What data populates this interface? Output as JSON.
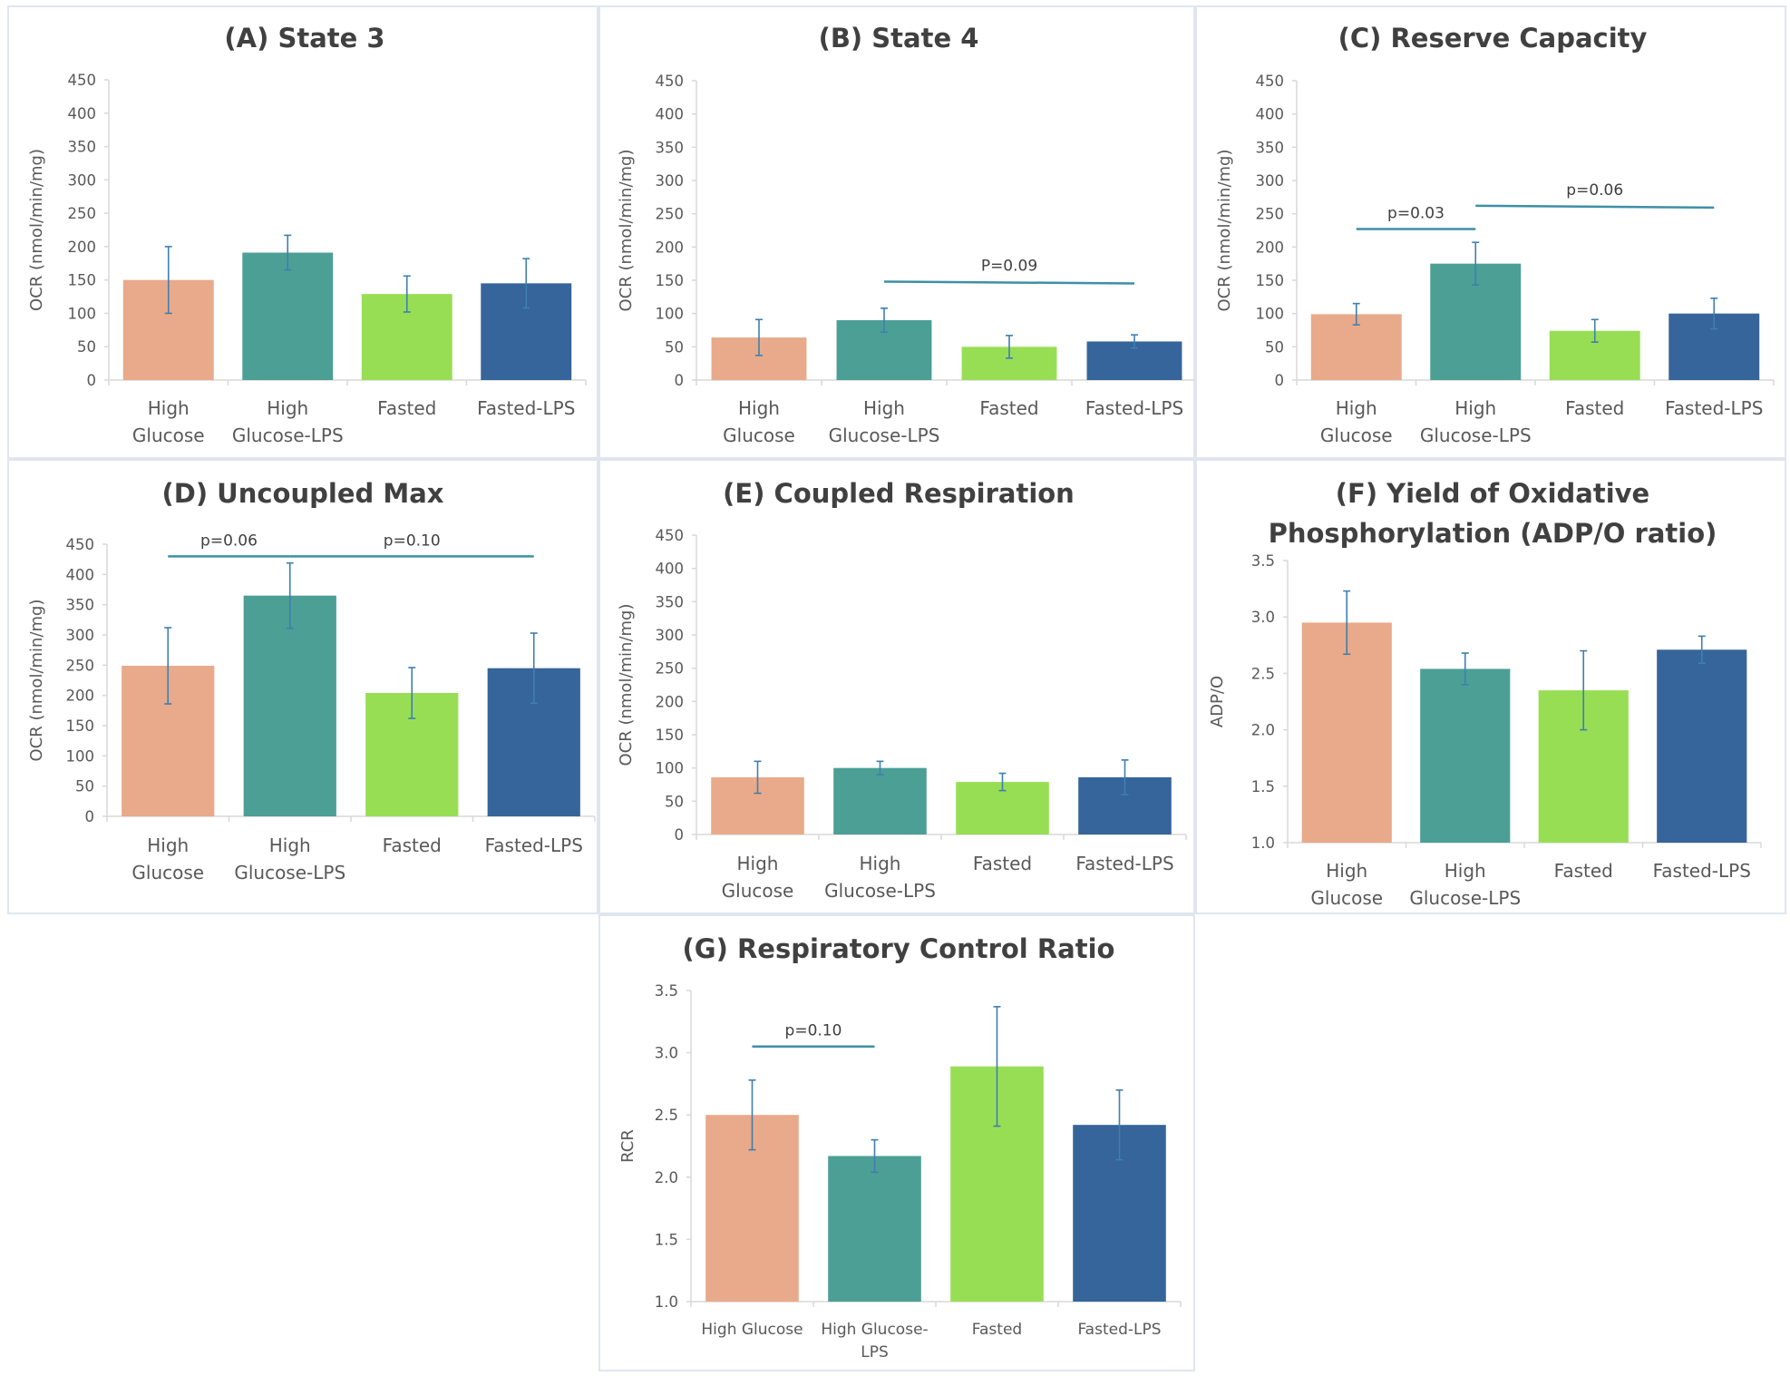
{
  "colors": {
    "high_glucose": "#e8aa8a",
    "high_glucose_lps": "#4c9f95",
    "fasted": "#98de55",
    "fasted_lps": "#35659a",
    "error_bar": "#3f7fb0",
    "annotation_line": "#3e8fa6",
    "axis": "#d9d9d9",
    "text": "#595959"
  },
  "chart_data": [
    {
      "id": "A",
      "type": "bar",
      "title": "(A) State 3",
      "ylabel": "OCR (nmol/min/mg)",
      "ylim": [
        0,
        450
      ],
      "yticks": [
        "0",
        "50",
        "100",
        "150",
        "200",
        "250",
        "300",
        "350",
        "400",
        "450"
      ],
      "categories": [
        [
          "High",
          "Glucose"
        ],
        [
          "High",
          "Glucose-LPS"
        ],
        [
          "Fasted"
        ],
        [
          "Fasted-LPS"
        ]
      ],
      "values": [
        150,
        191,
        129,
        145
      ],
      "errors": [
        50,
        26,
        27,
        37
      ],
      "annotations": []
    },
    {
      "id": "B",
      "type": "bar",
      "title": "(B) State 4",
      "ylabel": "OCR (nmol/min/mg)",
      "ylim": [
        0,
        450
      ],
      "yticks": [
        "0",
        "50",
        "100",
        "150",
        "200",
        "250",
        "300",
        "350",
        "400",
        "450"
      ],
      "categories": [
        [
          "High",
          "Glucose"
        ],
        [
          "High",
          "Glucose-LPS"
        ],
        [
          "Fasted"
        ],
        [
          "Fasted-LPS"
        ]
      ],
      "values": [
        64,
        90,
        50,
        58
      ],
      "errors": [
        27,
        18,
        17,
        10
      ],
      "annotations": [
        {
          "text": "P=0.09",
          "from": 2,
          "to": 4,
          "level": 148
        }
      ]
    },
    {
      "id": "C",
      "type": "bar",
      "title": "(C) Reserve Capacity",
      "ylabel": "OCR (nmol/min/mg)",
      "ylim": [
        0,
        450
      ],
      "yticks": [
        "0",
        "50",
        "100",
        "150",
        "200",
        "250",
        "300",
        "350",
        "400",
        "450"
      ],
      "categories": [
        [
          "High",
          "Glucose"
        ],
        [
          "High",
          "Glucose-LPS"
        ],
        [
          "Fasted"
        ],
        [
          "Fasted-LPS"
        ]
      ],
      "values": [
        99,
        175,
        74,
        100
      ],
      "errors": [
        16,
        32,
        17,
        23
      ],
      "annotations": [
        {
          "text": "p=0.03",
          "from": 1,
          "to": 2,
          "level": 227
        },
        {
          "text": "p=0.06",
          "from": 2,
          "to": 4,
          "level": 262
        }
      ]
    },
    {
      "id": "D",
      "type": "bar",
      "title": "(D) Uncoupled Max",
      "ylabel": "OCR (nmol/min/mg)",
      "ylim": [
        0,
        450
      ],
      "yticks": [
        "0",
        "50",
        "100",
        "150",
        "200",
        "250",
        "300",
        "350",
        "400",
        "450"
      ],
      "categories": [
        [
          "High",
          "Glucose"
        ],
        [
          "High",
          "Glucose-LPS"
        ],
        [
          "Fasted"
        ],
        [
          "Fasted-LPS"
        ]
      ],
      "values": [
        249,
        365,
        204,
        245
      ],
      "errors": [
        63,
        54,
        42,
        58
      ],
      "annotations": [
        {
          "text": "p=0.06",
          "from": 1,
          "to": 2,
          "level": 430
        },
        {
          "text": "p=0.10",
          "from": 2,
          "to": 4,
          "level": 430
        }
      ]
    },
    {
      "id": "E",
      "type": "bar",
      "title": "(E) Coupled Respiration",
      "ylabel": "OCR (nmol/min/mg)",
      "ylim": [
        0,
        450
      ],
      "yticks": [
        "0",
        "50",
        "100",
        "150",
        "200",
        "250",
        "300",
        "350",
        "400",
        "450"
      ],
      "categories": [
        [
          "High",
          "Glucose"
        ],
        [
          "High",
          "Glucose-LPS"
        ],
        [
          "Fasted"
        ],
        [
          "Fasted-LPS"
        ]
      ],
      "values": [
        86,
        100,
        79,
        86
      ],
      "errors": [
        24,
        10,
        13,
        26
      ],
      "annotations": []
    },
    {
      "id": "F",
      "type": "bar",
      "title": "(F) Yield of Oxidative Phosphorylation (ADP/O ratio)",
      "title_lines": [
        "(F) Yield of Oxidative",
        "Phosphorylation (ADP/O ratio)"
      ],
      "ylabel": "ADP/O",
      "ylim": [
        1.0,
        3.5
      ],
      "yticks": [
        "1.0",
        "1.5",
        "2.0",
        "2.5",
        "3.0",
        "3.5"
      ],
      "categories": [
        [
          "High",
          "Glucose"
        ],
        [
          "High",
          "Glucose-LPS"
        ],
        [
          "Fasted"
        ],
        [
          "Fasted-LPS"
        ]
      ],
      "values": [
        2.95,
        2.54,
        2.35,
        2.71
      ],
      "errors": [
        0.28,
        0.14,
        0.35,
        0.12
      ],
      "annotations": []
    },
    {
      "id": "G",
      "type": "bar",
      "title": "(G) Respiratory Control Ratio",
      "ylabel": "RCR",
      "ylim": [
        1.0,
        3.5
      ],
      "yticks": [
        "1.0",
        "1.5",
        "2.0",
        "2.5",
        "3.0",
        "3.5"
      ],
      "categories": [
        [
          "High Glucose"
        ],
        [
          "High Glucose-",
          "LPS"
        ],
        [
          "Fasted"
        ],
        [
          "Fasted-LPS"
        ]
      ],
      "values": [
        2.5,
        2.17,
        2.89,
        2.42
      ],
      "errors": [
        0.28,
        0.13,
        0.48,
        0.28
      ],
      "annotations": [
        {
          "text": "p=0.10",
          "from": 1,
          "to": 2,
          "level": 3.05
        }
      ]
    }
  ]
}
